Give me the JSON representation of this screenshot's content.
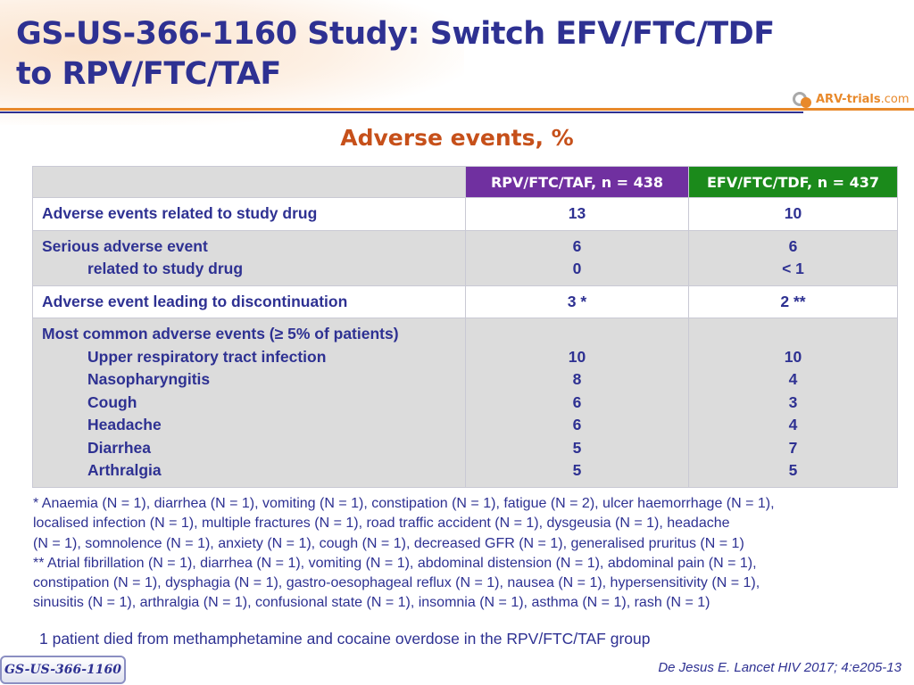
{
  "title": {
    "line1": "GS-US-366-1160 Study: Switch EFV/FTC/TDF",
    "line2": "to RPV/FTC/TAF"
  },
  "logo": {
    "text_main": "ARV-trials",
    "text_tld": ".com"
  },
  "subtitle": "Adverse events, %",
  "table": {
    "headers": {
      "rpv": "RPV/FTC/TAF, n = 438",
      "efv": "EFV/FTC/TDF, n = 437"
    },
    "rows": [
      {
        "labels": [
          {
            "text": "Adverse events related to study drug",
            "indent": false
          }
        ],
        "rpv": [
          "13"
        ],
        "efv": [
          "10"
        ]
      },
      {
        "labels": [
          {
            "text": "Serious adverse event",
            "indent": false
          },
          {
            "text": "related to study drug",
            "indent": true
          }
        ],
        "rpv": [
          "6",
          "0"
        ],
        "efv": [
          "6",
          "< 1"
        ]
      },
      {
        "labels": [
          {
            "text": "Adverse event leading to discontinuation",
            "indent": false
          }
        ],
        "rpv": [
          "3 *"
        ],
        "efv": [
          "2 **"
        ]
      },
      {
        "labels": [
          {
            "text": "Most common adverse events (≥ 5% of patients)",
            "indent": false
          },
          {
            "text": "Upper respiratory tract infection",
            "indent": true
          },
          {
            "text": "Nasopharyngitis",
            "indent": true
          },
          {
            "text": "Cough",
            "indent": true
          },
          {
            "text": "Headache",
            "indent": true
          },
          {
            "text": "Diarrhea",
            "indent": true
          },
          {
            "text": "Arthralgia",
            "indent": true
          }
        ],
        "rpv": [
          "",
          "10",
          "8",
          "6",
          "6",
          "5",
          "5"
        ],
        "efv": [
          "",
          "10",
          "4",
          "3",
          "4",
          "7",
          "5"
        ]
      }
    ]
  },
  "footnotes": {
    "single_star_1": "* Anaemia (N = 1), diarrhea (N = 1), vomiting (N = 1), constipation (N = 1), fatigue (N = 2), ulcer haemorrhage (N = 1),",
    "single_star_2": "localised infection (N = 1), multiple fractures (N = 1), road traffic accident (N = 1), dysgeusia (N = 1), headache",
    "single_star_3": "(N = 1), somnolence (N = 1), anxiety (N = 1), cough (N = 1), decreased GFR (N = 1), generalised pruritus (N = 1)",
    "double_star_1": "** Atrial fibrillation (N = 1), diarrhea (N = 1), vomiting (N = 1), abdominal distension (N = 1), abdominal pain (N = 1),",
    "double_star_2": "constipation (N = 1), dysphagia (N = 1), gastro-oesophageal reflux (N = 1), nausea (N = 1), hypersensitivity (N = 1),",
    "double_star_3": "sinusitis (N = 1), arthralgia (N = 1), confusional state (N = 1), insomnia (N = 1), asthma (N = 1), rash (N = 1)"
  },
  "death_note": "1 patient died from methamphetamine and cocaine overdose in the RPV/FTC/TAF group",
  "study_tab": "GS-US-366-1160",
  "citation": "De Jesus E. Lancet HIV 2017; 4:e205-13",
  "colors": {
    "title_blue": "#2e3192",
    "accent_orange": "#e8892b",
    "subtitle_red": "#c6501a",
    "rpv_purple": "#7030a0",
    "efv_green": "#1b8a1b",
    "row_grey": "#dcdcdc"
  }
}
